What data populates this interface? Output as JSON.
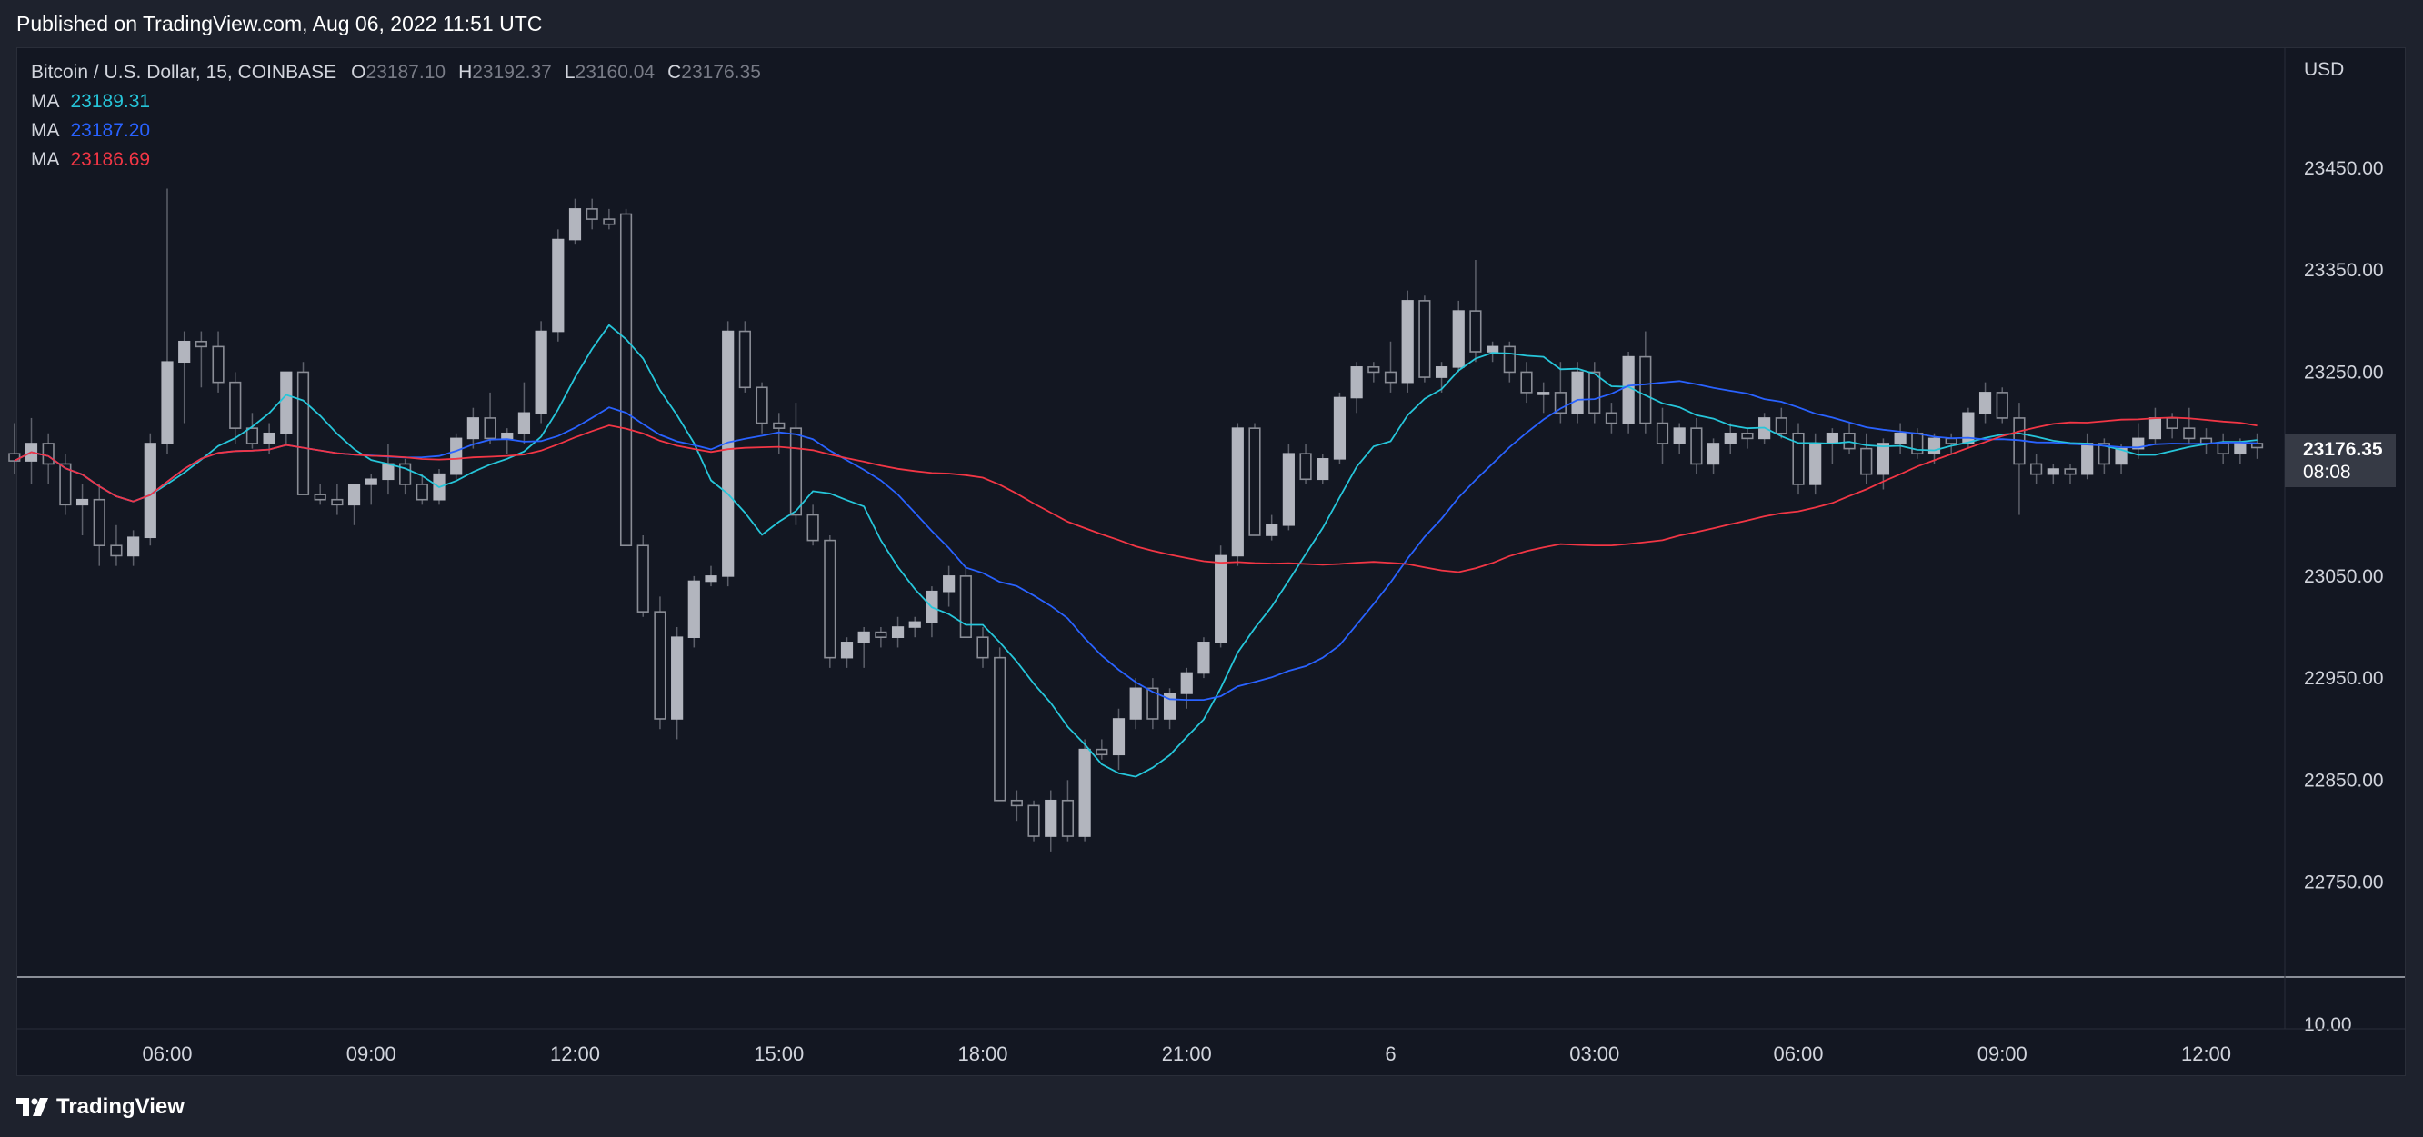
{
  "header": {
    "published_text": "Published on TradingView.com, Aug 06, 2022 11:51 UTC"
  },
  "legend": {
    "symbol": "Bitcoin / U.S. Dollar, 15, COINBASE",
    "o_label": "O",
    "o_value": "23187.10",
    "h_label": "H",
    "h_value": "23192.37",
    "l_label": "L",
    "l_value": "23160.04",
    "c_label": "C",
    "c_value": "23176.35",
    "ma": [
      {
        "label": "MA",
        "value": "23189.31",
        "color": "#26c6da"
      },
      {
        "label": "MA",
        "value": "23187.20",
        "color": "#2962ff"
      },
      {
        "label": "MA",
        "value": "23186.69",
        "color": "#f23645"
      }
    ]
  },
  "price_badge": {
    "price": "23176.35",
    "countdown": "08:08"
  },
  "footer": {
    "brand": "TradingView"
  },
  "colors": {
    "background": "#131722",
    "candle_body": "#b2b5be",
    "wick": "#5d606b",
    "ma_fast": "#26c6da",
    "ma_mid": "#2962ff",
    "ma_slow": "#f23645"
  },
  "chart_data": {
    "type": "candlestick",
    "currency_label": "USD",
    "y_ticks": [
      "23450.00",
      "23350.00",
      "23250.00",
      "23150.00",
      "23050.00",
      "22950.00",
      "22850.00",
      "22750.00"
    ],
    "y_tick_values": [
      23450,
      23350,
      23250,
      23150,
      23050,
      22950,
      22850,
      22750
    ],
    "volume_tick": "10.00",
    "x_ticks": [
      "06:00",
      "09:00",
      "12:00",
      "15:00",
      "18:00",
      "21:00",
      "6",
      "03:00",
      "06:00",
      "09:00",
      "12:00"
    ],
    "x_tick_hours": [
      6,
      9,
      12,
      15,
      18,
      21,
      24,
      27,
      30,
      33,
      36
    ],
    "start_hour": 3.75,
    "interval_minutes": 15,
    "candles": [
      [
        23170,
        23200,
        23150,
        23163
      ],
      [
        23163,
        23205,
        23140,
        23180
      ],
      [
        23180,
        23190,
        23140,
        23160
      ],
      [
        23160,
        23170,
        23110,
        23120
      ],
      [
        23120,
        23140,
        23090,
        23125
      ],
      [
        23125,
        23140,
        23060,
        23080
      ],
      [
        23080,
        23100,
        23060,
        23070
      ],
      [
        23070,
        23095,
        23060,
        23088
      ],
      [
        23088,
        23190,
        23080,
        23180
      ],
      [
        23180,
        23430,
        23170,
        23260
      ],
      [
        23260,
        23290,
        23200,
        23280
      ],
      [
        23280,
        23290,
        23235,
        23275
      ],
      [
        23275,
        23290,
        23230,
        23240
      ],
      [
        23240,
        23250,
        23180,
        23195
      ],
      [
        23195,
        23210,
        23175,
        23180
      ],
      [
        23180,
        23200,
        23170,
        23190
      ],
      [
        23190,
        23250,
        23180,
        23250
      ],
      [
        23250,
        23260,
        23130,
        23130
      ],
      [
        23130,
        23140,
        23120,
        23125
      ],
      [
        23125,
        23140,
        23110,
        23120
      ],
      [
        23120,
        23140,
        23100,
        23140
      ],
      [
        23140,
        23150,
        23120,
        23145
      ],
      [
        23145,
        23180,
        23130,
        23160
      ],
      [
        23160,
        23165,
        23130,
        23140
      ],
      [
        23140,
        23150,
        23120,
        23125
      ],
      [
        23125,
        23155,
        23120,
        23150
      ],
      [
        23150,
        23190,
        23145,
        23185
      ],
      [
        23185,
        23215,
        23175,
        23205
      ],
      [
        23205,
        23230,
        23180,
        23185
      ],
      [
        23185,
        23195,
        23170,
        23190
      ],
      [
        23190,
        23240,
        23180,
        23210
      ],
      [
        23210,
        23300,
        23200,
        23290
      ],
      [
        23290,
        23390,
        23280,
        23380
      ],
      [
        23380,
        23420,
        23375,
        23410
      ],
      [
        23410,
        23420,
        23390,
        23400
      ],
      [
        23400,
        23410,
        23390,
        23395
      ],
      [
        23405,
        23410,
        23080,
        23080
      ],
      [
        23080,
        23090,
        23010,
        23015
      ],
      [
        23015,
        23030,
        22900,
        22910
      ],
      [
        22910,
        23000,
        22890,
        22990
      ],
      [
        22990,
        23050,
        22980,
        23045
      ],
      [
        23045,
        23060,
        23040,
        23050
      ],
      [
        23050,
        23300,
        23040,
        23290
      ],
      [
        23290,
        23300,
        23230,
        23235
      ],
      [
        23235,
        23240,
        23190,
        23200
      ],
      [
        23200,
        23210,
        23170,
        23195
      ],
      [
        23195,
        23220,
        23100,
        23110
      ],
      [
        23110,
        23120,
        23080,
        23085
      ],
      [
        23085,
        23090,
        22960,
        22970
      ],
      [
        22970,
        22990,
        22960,
        22985
      ],
      [
        22985,
        23000,
        22960,
        22995
      ],
      [
        22995,
        23000,
        22980,
        22990
      ],
      [
        22990,
        23010,
        22980,
        23000
      ],
      [
        23000,
        23010,
        22990,
        23005
      ],
      [
        23005,
        23040,
        22990,
        23035
      ],
      [
        23035,
        23060,
        23020,
        23050
      ],
      [
        23050,
        23060,
        22990,
        22990
      ],
      [
        22990,
        23000,
        22960,
        22970
      ],
      [
        22970,
        22980,
        22830,
        22830
      ],
      [
        22830,
        22840,
        22810,
        22825
      ],
      [
        22825,
        22830,
        22790,
        22795
      ],
      [
        22795,
        22840,
        22780,
        22830
      ],
      [
        22830,
        22850,
        22790,
        22795
      ],
      [
        22795,
        22890,
        22790,
        22880
      ],
      [
        22880,
        22890,
        22870,
        22875
      ],
      [
        22875,
        22920,
        22860,
        22910
      ],
      [
        22910,
        22950,
        22900,
        22940
      ],
      [
        22940,
        22950,
        22900,
        22910
      ],
      [
        22910,
        22940,
        22900,
        22935
      ],
      [
        22935,
        22960,
        22920,
        22955
      ],
      [
        22955,
        22990,
        22950,
        22985
      ],
      [
        22985,
        23080,
        22980,
        23070
      ],
      [
        23070,
        23200,
        23060,
        23195
      ],
      [
        23195,
        23200,
        23090,
        23090
      ],
      [
        23090,
        23110,
        23085,
        23100
      ],
      [
        23100,
        23180,
        23095,
        23170
      ],
      [
        23170,
        23180,
        23140,
        23145
      ],
      [
        23145,
        23170,
        23140,
        23165
      ],
      [
        23165,
        23230,
        23160,
        23225
      ],
      [
        23225,
        23260,
        23210,
        23255
      ],
      [
        23255,
        23260,
        23240,
        23250
      ],
      [
        23250,
        23280,
        23230,
        23240
      ],
      [
        23240,
        23330,
        23230,
        23320
      ],
      [
        23320,
        23325,
        23240,
        23245
      ],
      [
        23245,
        23260,
        23230,
        23255
      ],
      [
        23255,
        23320,
        23250,
        23310
      ],
      [
        23310,
        23360,
        23260,
        23270
      ],
      [
        23270,
        23280,
        23260,
        23275
      ],
      [
        23275,
        23280,
        23240,
        23250
      ],
      [
        23250,
        23260,
        23220,
        23230
      ],
      [
        23230,
        23240,
        23210,
        23230
      ],
      [
        23230,
        23260,
        23200,
        23210
      ],
      [
        23210,
        23260,
        23200,
        23250
      ],
      [
        23250,
        23260,
        23200,
        23210
      ],
      [
        23210,
        23220,
        23190,
        23200
      ],
      [
        23200,
        23270,
        23190,
        23265
      ],
      [
        23265,
        23290,
        23190,
        23200
      ],
      [
        23200,
        23215,
        23160,
        23180
      ],
      [
        23180,
        23200,
        23170,
        23195
      ],
      [
        23195,
        23205,
        23150,
        23160
      ],
      [
        23160,
        23185,
        23150,
        23180
      ],
      [
        23180,
        23200,
        23170,
        23190
      ],
      [
        23190,
        23195,
        23175,
        23185
      ],
      [
        23185,
        23210,
        23180,
        23205
      ],
      [
        23205,
        23215,
        23185,
        23190
      ],
      [
        23190,
        23200,
        23130,
        23140
      ],
      [
        23140,
        23190,
        23130,
        23180
      ],
      [
        23180,
        23195,
        23160,
        23190
      ],
      [
        23190,
        23200,
        23170,
        23175
      ],
      [
        23175,
        23190,
        23140,
        23150
      ],
      [
        23150,
        23185,
        23135,
        23180
      ],
      [
        23180,
        23200,
        23170,
        23190
      ],
      [
        23190,
        23195,
        23165,
        23170
      ],
      [
        23170,
        23190,
        23160,
        23185
      ],
      [
        23185,
        23190,
        23170,
        23180
      ],
      [
        23180,
        23215,
        23175,
        23210
      ],
      [
        23210,
        23240,
        23200,
        23230
      ],
      [
        23230,
        23235,
        23200,
        23205
      ],
      [
        23205,
        23220,
        23110,
        23160
      ],
      [
        23160,
        23170,
        23140,
        23150
      ],
      [
        23150,
        23160,
        23140,
        23155
      ],
      [
        23155,
        23160,
        23140,
        23150
      ],
      [
        23150,
        23190,
        23145,
        23180
      ],
      [
        23180,
        23185,
        23150,
        23160
      ],
      [
        23160,
        23180,
        23150,
        23175
      ],
      [
        23175,
        23200,
        23165,
        23185
      ],
      [
        23185,
        23215,
        23180,
        23205
      ],
      [
        23205,
        23210,
        23185,
        23195
      ],
      [
        23195,
        23215,
        23180,
        23185
      ],
      [
        23185,
        23195,
        23170,
        23180
      ],
      [
        23180,
        23190,
        23160,
        23170
      ],
      [
        23170,
        23185,
        23160,
        23180
      ],
      [
        23180,
        23190,
        23165,
        23176
      ]
    ]
  }
}
